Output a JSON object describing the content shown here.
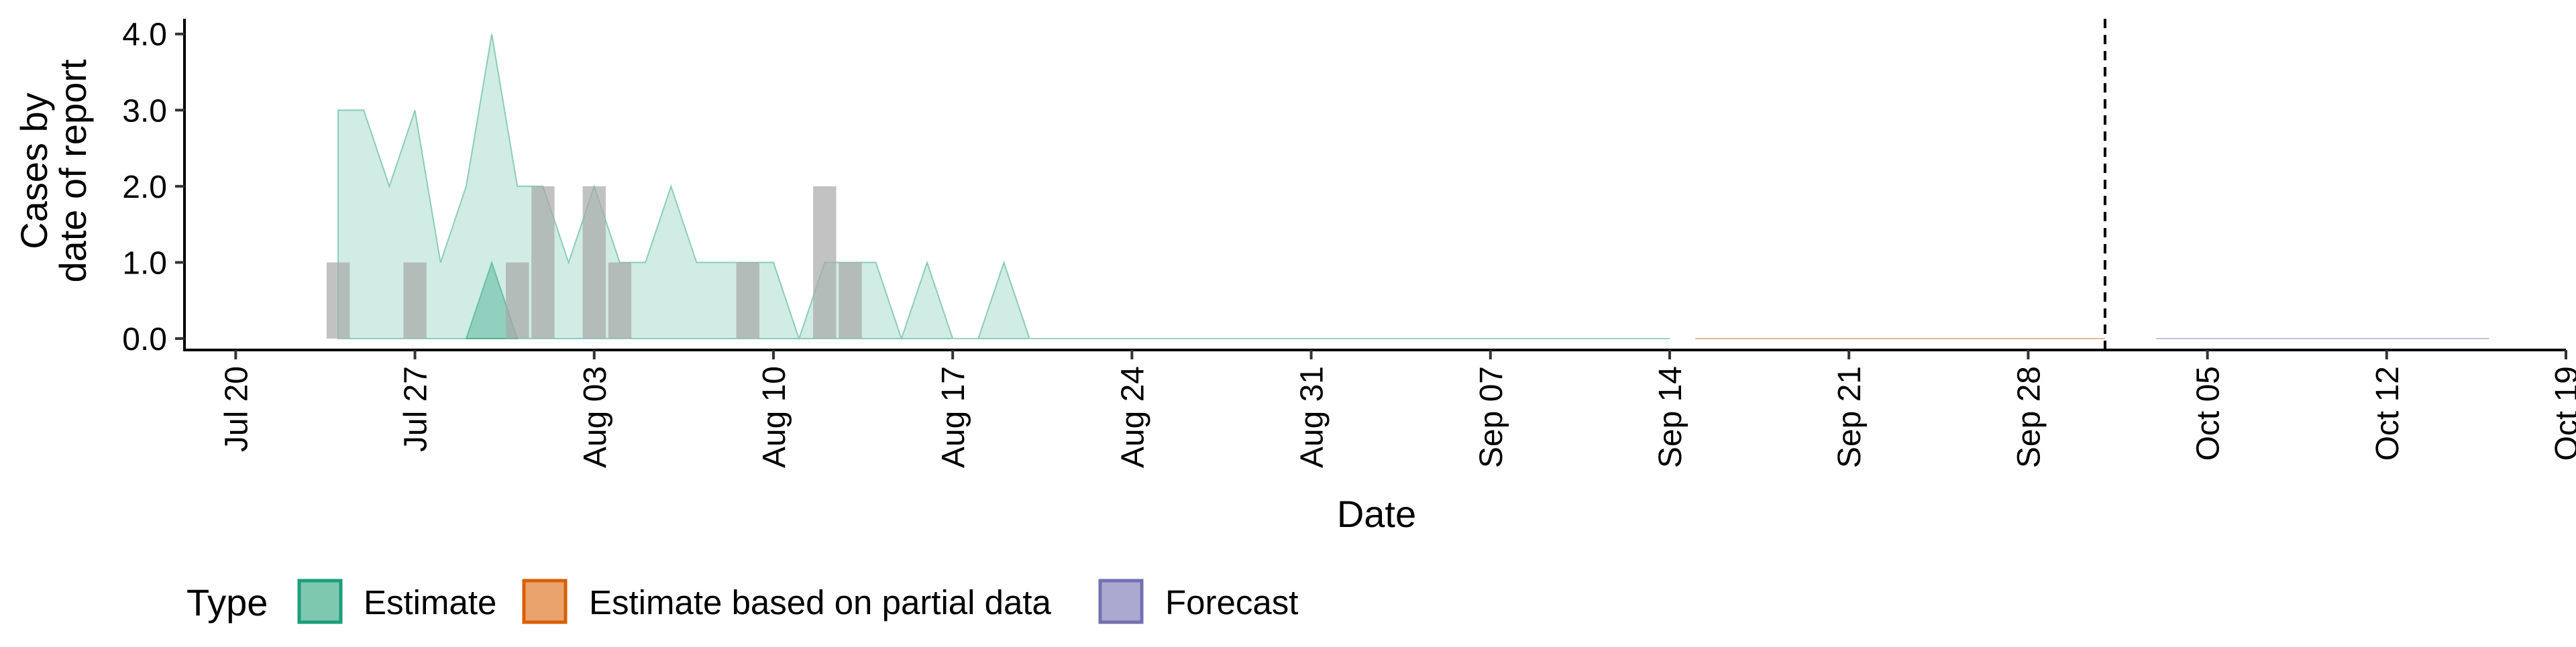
{
  "chart_data": {
    "type": "area",
    "xlabel": "Date",
    "ylabel_lines": [
      "Cases by",
      "date of report"
    ],
    "x_axis_range": [
      "2020-07-18",
      "2020-10-19"
    ],
    "y_axis_range": [
      -0.15,
      4.2
    ],
    "y_ticks": [
      0,
      1,
      2,
      3,
      4
    ],
    "y_tick_labels": [
      "0.0",
      "1.0",
      "2.0",
      "3.0",
      "4.0"
    ],
    "x_ticks": [
      "2020-07-20",
      "2020-07-27",
      "2020-08-03",
      "2020-08-10",
      "2020-08-17",
      "2020-08-24",
      "2020-08-31",
      "2020-09-07",
      "2020-09-14",
      "2020-09-21",
      "2020-09-28",
      "2020-10-05",
      "2020-10-12",
      "2020-10-19"
    ],
    "x_tick_labels": [
      "Jul 20",
      "Jul 27",
      "Aug 03",
      "Aug 10",
      "Aug 17",
      "Aug 24",
      "Aug 31",
      "Sep 07",
      "Sep 14",
      "Sep 21",
      "Sep 28",
      "Oct 05",
      "Oct 12",
      "Oct 19"
    ],
    "grid": false,
    "legend": {
      "position": "bottom",
      "title": "Type",
      "entries": [
        {
          "label": "Estimate",
          "fill": "#7fc8b0",
          "stroke": "#1b9e77"
        },
        {
          "label": "Estimate based on partial data",
          "fill": "#eba36e",
          "stroke": "#d95f02"
        },
        {
          "label": "Forecast",
          "fill": "#aca9d0",
          "stroke": "#7570b3"
        }
      ]
    },
    "colors": {
      "estimate": "#1b9e77",
      "partial": "#d95f02",
      "forecast": "#7570b3",
      "reported_bars": "#a8a8a8"
    },
    "reference_line": {
      "date": "2020-10-01",
      "style": "dashed"
    },
    "series": [
      {
        "type": "Estimate",
        "outer_band": [
          {
            "date": "2020-07-24",
            "lower": 0,
            "upper": 3
          },
          {
            "date": "2020-07-25",
            "lower": 0,
            "upper": 3
          },
          {
            "date": "2020-07-26",
            "lower": 0,
            "upper": 2
          },
          {
            "date": "2020-07-27",
            "lower": 0,
            "upper": 3
          },
          {
            "date": "2020-07-28",
            "lower": 0,
            "upper": 1
          },
          {
            "date": "2020-07-29",
            "lower": 0,
            "upper": 2
          },
          {
            "date": "2020-07-30",
            "lower": 0,
            "upper": 4
          },
          {
            "date": "2020-07-31",
            "lower": 0,
            "upper": 2
          },
          {
            "date": "2020-08-01",
            "lower": 0,
            "upper": 2
          },
          {
            "date": "2020-08-02",
            "lower": 0,
            "upper": 1
          },
          {
            "date": "2020-08-03",
            "lower": 0,
            "upper": 2
          },
          {
            "date": "2020-08-04",
            "lower": 0,
            "upper": 1
          },
          {
            "date": "2020-08-05",
            "lower": 0,
            "upper": 1
          },
          {
            "date": "2020-08-06",
            "lower": 0,
            "upper": 2
          },
          {
            "date": "2020-08-07",
            "lower": 0,
            "upper": 1
          },
          {
            "date": "2020-08-08",
            "lower": 0,
            "upper": 1
          },
          {
            "date": "2020-08-09",
            "lower": 0,
            "upper": 1
          },
          {
            "date": "2020-08-10",
            "lower": 0,
            "upper": 1
          },
          {
            "date": "2020-08-11",
            "lower": 0,
            "upper": 0
          },
          {
            "date": "2020-08-12",
            "lower": 0,
            "upper": 1
          },
          {
            "date": "2020-08-13",
            "lower": 0,
            "upper": 1
          },
          {
            "date": "2020-08-14",
            "lower": 0,
            "upper": 1
          },
          {
            "date": "2020-08-15",
            "lower": 0,
            "upper": 0
          },
          {
            "date": "2020-08-16",
            "lower": 0,
            "upper": 1
          },
          {
            "date": "2020-08-17",
            "lower": 0,
            "upper": 0
          },
          {
            "date": "2020-08-18",
            "lower": 0,
            "upper": 0
          },
          {
            "date": "2020-08-19",
            "lower": 0,
            "upper": 1
          },
          {
            "date": "2020-08-20",
            "lower": 0,
            "upper": 0
          },
          {
            "date": "2020-09-14",
            "lower": 0,
            "upper": 0
          }
        ],
        "inner_band": [
          {
            "date": "2020-07-29",
            "lower": 0,
            "upper": 0
          },
          {
            "date": "2020-07-30",
            "lower": 0,
            "upper": 1
          },
          {
            "date": "2020-07-31",
            "lower": 0,
            "upper": 0
          }
        ]
      },
      {
        "type": "Estimate based on partial data",
        "outer_band": [
          {
            "date": "2020-09-15",
            "lower": 0,
            "upper": 0
          },
          {
            "date": "2020-10-01",
            "lower": 0,
            "upper": 0
          }
        ]
      },
      {
        "type": "Forecast",
        "outer_band": [
          {
            "date": "2020-10-03",
            "lower": 0,
            "upper": 0
          },
          {
            "date": "2020-10-16",
            "lower": 0,
            "upper": 0
          }
        ]
      }
    ],
    "reported_cases": [
      {
        "date": "2020-07-24",
        "value": 1
      },
      {
        "date": "2020-07-27",
        "value": 1
      },
      {
        "date": "2020-07-31",
        "value": 1
      },
      {
        "date": "2020-08-01",
        "value": 2
      },
      {
        "date": "2020-08-03",
        "value": 2
      },
      {
        "date": "2020-08-04",
        "value": 1
      },
      {
        "date": "2020-08-09",
        "value": 1
      },
      {
        "date": "2020-08-12",
        "value": 2
      },
      {
        "date": "2020-08-13",
        "value": 1
      }
    ]
  }
}
